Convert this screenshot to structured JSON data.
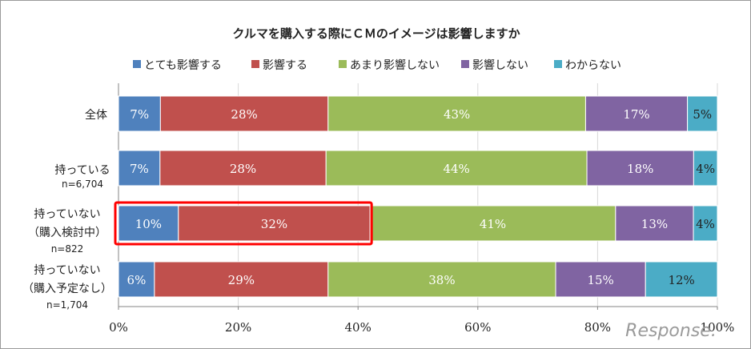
{
  "chart_data": {
    "type": "bar",
    "orientation": "horizontal",
    "stacked": true,
    "percent_stacked": true,
    "title": "クルマを購入する際にＣＭのイメージは影響しますか",
    "categories": [
      {
        "label": "全体",
        "sub": ""
      },
      {
        "label": "持っている",
        "sub": "n=6,704"
      },
      {
        "label": "持っていない",
        "label2": "（購入検討中）",
        "sub": "n=822"
      },
      {
        "label": "持っていない",
        "label2": "（購入予定なし）",
        "sub": "n=1,704"
      }
    ],
    "series": [
      {
        "name": "とても影響する",
        "color": "#4f81bd",
        "values": [
          7,
          7,
          10,
          6
        ],
        "labels": [
          "7%",
          "7%",
          "10%",
          "6%"
        ]
      },
      {
        "name": "影響する",
        "color": "#c0504d",
        "values": [
          28,
          28,
          32,
          29
        ],
        "labels": [
          "28%",
          "28%",
          "32%",
          "29%"
        ]
      },
      {
        "name": "あまり影響しない",
        "color": "#9bbb59",
        "values": [
          43,
          44,
          41,
          38
        ],
        "labels": [
          "43%",
          "44%",
          "41%",
          "38%"
        ]
      },
      {
        "name": "影響しない",
        "color": "#8064a2",
        "values": [
          17,
          18,
          13,
          15
        ],
        "labels": [
          "17%",
          "18%",
          "13%",
          "15%"
        ]
      },
      {
        "name": "わからない",
        "color": "#4bacc6",
        "values": [
          5,
          4,
          4,
          12
        ],
        "labels": [
          "5%",
          "4%",
          "4%",
          "12%"
        ]
      }
    ],
    "xlim": [
      0,
      100
    ],
    "x_ticks": [
      "0%",
      "20%",
      "40%",
      "60%",
      "80%",
      "100%"
    ],
    "grid": true,
    "legend_position": "top",
    "highlight": {
      "category_index": 2,
      "series_range": [
        0,
        1
      ],
      "color": "#ff0000"
    }
  },
  "watermark": "Response."
}
